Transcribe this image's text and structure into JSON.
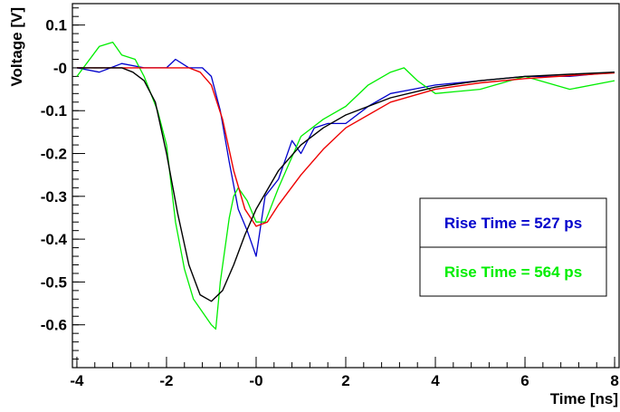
{
  "chart_data": {
    "type": "line",
    "title": "",
    "xlabel": "Time [ns]",
    "ylabel": "Voltage [V]",
    "xlim": [
      -4.1,
      8.1
    ],
    "ylim": [
      -0.7,
      0.15
    ],
    "grid": false,
    "legend_position": "lower-right",
    "x_major_ticks": [
      -4,
      -2,
      0,
      2,
      4,
      6,
      8
    ],
    "x_tick_labels": [
      "-4",
      "-2",
      "-0",
      "2",
      "4",
      "6",
      "8"
    ],
    "y_major_ticks": [
      0.1,
      0,
      -0.1,
      -0.2,
      -0.3,
      -0.4,
      -0.5,
      -0.6
    ],
    "y_tick_labels": [
      "0.1",
      "-0",
      "-0.1",
      "-0.2",
      "-0.3",
      "-0.4",
      "-0.5",
      "-0.6"
    ],
    "legend": [
      {
        "text": "Rise Time = 527 ps",
        "color": "#0000cc"
      },
      {
        "text": "Rise Time = 564 ps",
        "color": "#00ee00"
      }
    ],
    "series": [
      {
        "color": "#0000cc",
        "role": "data",
        "x": [
          -4.0,
          -3.5,
          -3.0,
          -2.5,
          -2.0,
          -1.8,
          -1.5,
          -1.2,
          -1.0,
          -0.8,
          -0.6,
          -0.4,
          -0.2,
          0.0,
          0.2,
          0.5,
          0.8,
          1.0,
          1.3,
          1.6,
          2.0,
          2.5,
          3.0,
          3.5,
          4.0,
          5.0,
          6.0,
          7.0,
          8.0
        ],
        "y": [
          0.0,
          -0.01,
          0.01,
          0.0,
          0.0,
          0.02,
          0.0,
          0.0,
          -0.02,
          -0.1,
          -0.22,
          -0.33,
          -0.38,
          -0.44,
          -0.3,
          -0.26,
          -0.17,
          -0.2,
          -0.14,
          -0.13,
          -0.13,
          -0.09,
          -0.06,
          -0.05,
          -0.04,
          -0.03,
          -0.02,
          -0.02,
          -0.01
        ]
      },
      {
        "color": "#00ee00",
        "role": "data",
        "x": [
          -4.0,
          -3.5,
          -3.2,
          -3.0,
          -2.7,
          -2.5,
          -2.2,
          -2.0,
          -1.8,
          -1.6,
          -1.4,
          -1.2,
          -1.0,
          -0.9,
          -0.8,
          -0.6,
          -0.5,
          -0.4,
          -0.2,
          0.0,
          0.2,
          0.5,
          1.0,
          1.5,
          2.0,
          2.5,
          3.0,
          3.3,
          3.6,
          4.0,
          5.0,
          6.0,
          7.0,
          8.0
        ],
        "y": [
          -0.02,
          0.05,
          0.06,
          0.03,
          0.02,
          -0.02,
          -0.1,
          -0.18,
          -0.36,
          -0.47,
          -0.54,
          -0.57,
          -0.6,
          -0.61,
          -0.5,
          -0.35,
          -0.3,
          -0.28,
          -0.31,
          -0.36,
          -0.36,
          -0.28,
          -0.16,
          -0.12,
          -0.09,
          -0.04,
          -0.01,
          0.0,
          -0.03,
          -0.06,
          -0.05,
          -0.02,
          -0.05,
          -0.03
        ]
      },
      {
        "color": "#ee0000",
        "role": "fit",
        "x": [
          -4.0,
          -2.0,
          -1.5,
          -1.25,
          -1.0,
          -0.75,
          -0.5,
          -0.25,
          0.0,
          0.25,
          0.5,
          1.0,
          1.5,
          2.0,
          3.0,
          4.0,
          5.0,
          6.0,
          7.0,
          8.0
        ],
        "y": [
          0.0,
          0.0,
          0.0,
          -0.01,
          -0.04,
          -0.12,
          -0.24,
          -0.33,
          -0.37,
          -0.36,
          -0.32,
          -0.25,
          -0.19,
          -0.14,
          -0.08,
          -0.05,
          -0.035,
          -0.025,
          -0.018,
          -0.012
        ]
      },
      {
        "color": "#000000",
        "role": "fit",
        "x": [
          -4.0,
          -3.0,
          -2.75,
          -2.5,
          -2.25,
          -2.0,
          -1.75,
          -1.5,
          -1.25,
          -1.0,
          -0.75,
          -0.5,
          -0.25,
          0.0,
          0.5,
          1.0,
          1.5,
          2.0,
          3.0,
          4.0,
          5.0,
          6.0,
          7.0,
          8.0
        ],
        "y": [
          0.0,
          0.0,
          -0.01,
          -0.03,
          -0.08,
          -0.2,
          -0.34,
          -0.46,
          -0.53,
          -0.545,
          -0.52,
          -0.46,
          -0.39,
          -0.33,
          -0.24,
          -0.18,
          -0.14,
          -0.11,
          -0.07,
          -0.045,
          -0.03,
          -0.02,
          -0.015,
          -0.01
        ]
      }
    ]
  }
}
